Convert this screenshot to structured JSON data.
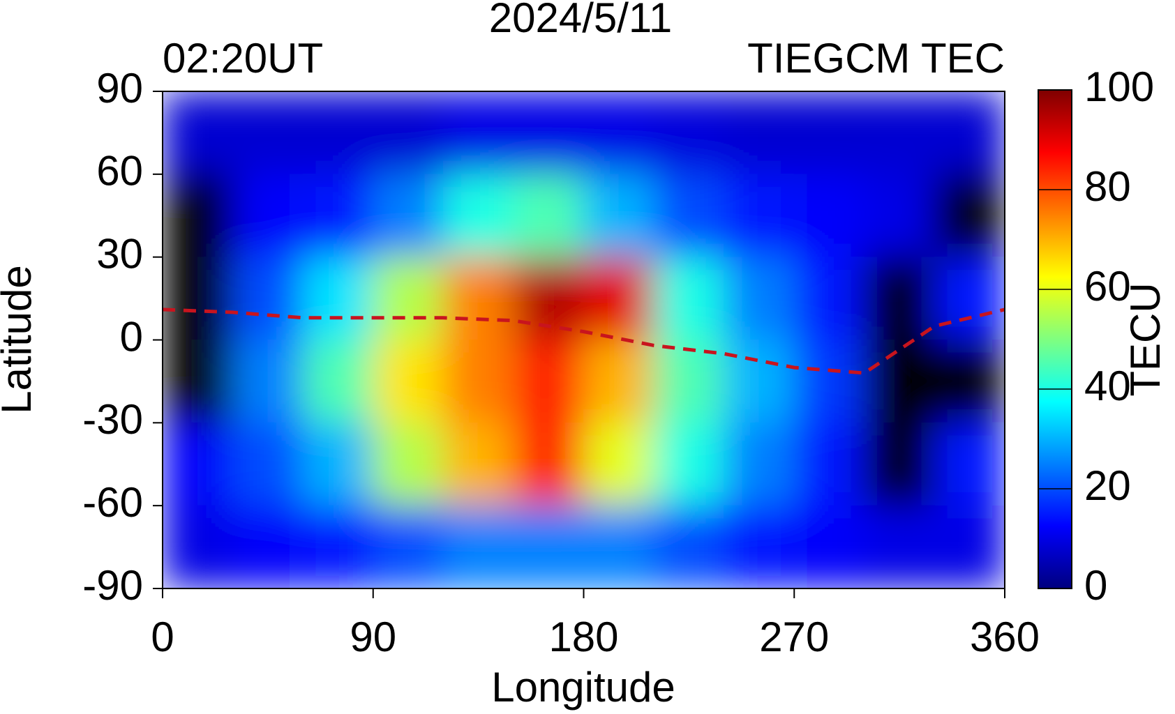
{
  "chart_data": {
    "type": "heatmap",
    "title": "2024/5/11",
    "subtitle_left": "02:20UT",
    "subtitle_right": "TIEGCM TEC",
    "x_label": "Longitude",
    "y_label": "Latitude",
    "colorbar_label": "TECU",
    "colormap": "jet",
    "x": [
      15,
      45,
      75,
      105,
      135,
      165,
      195,
      225,
      255,
      285,
      315,
      345
    ],
    "y": [
      75,
      45,
      15,
      -15,
      -45,
      -75
    ],
    "z": [
      [
        8,
        8,
        8,
        8,
        10,
        10,
        10,
        9,
        8,
        8,
        8,
        8
      ],
      [
        null,
        12,
        15,
        25,
        40,
        45,
        30,
        20,
        15,
        12,
        10,
        null
      ],
      [
        null,
        20,
        35,
        55,
        75,
        95,
        90,
        40,
        25,
        15,
        null,
        15
      ],
      [
        null,
        25,
        45,
        65,
        75,
        85,
        70,
        45,
        30,
        18,
        null,
        null
      ],
      [
        12,
        20,
        30,
        55,
        70,
        85,
        60,
        40,
        25,
        15,
        null,
        15
      ],
      [
        10,
        12,
        15,
        20,
        25,
        25,
        25,
        20,
        15,
        12,
        10,
        10
      ]
    ],
    "lines": [
      {
        "color": "#c8141e",
        "x": [
          0,
          30,
          60,
          90,
          120,
          150,
          180,
          210,
          240,
          270,
          300,
          330,
          360
        ],
        "y": [
          11,
          10,
          8,
          8,
          8,
          7,
          3,
          -2,
          -5,
          -10,
          -12,
          5,
          11
        ]
      }
    ],
    "xlim": [
      0,
      360
    ],
    "xticks": [
      0,
      90,
      180,
      270,
      360
    ],
    "ylim": [
      -90,
      90
    ],
    "yticks": [
      90,
      60,
      30,
      0,
      -30,
      -60,
      -90
    ],
    "zlim": [
      0,
      100
    ],
    "zticks": [
      100,
      80,
      60,
      40,
      20,
      0
    ],
    "grid": false
  }
}
